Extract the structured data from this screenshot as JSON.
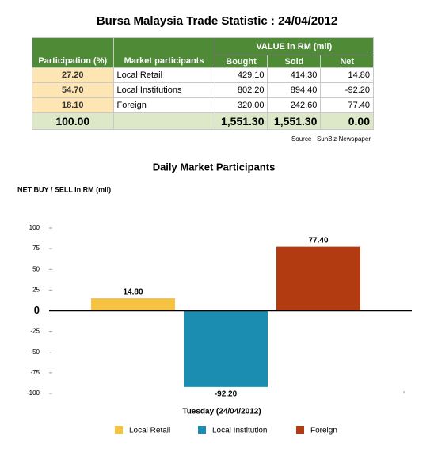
{
  "header": {
    "title": "Bursa Malaysia Trade Statistic : 24/04/2012"
  },
  "table": {
    "group_header": "VALUE in RM (mil)",
    "columns": [
      "Participation (%)",
      "Market participants",
      "Bought",
      "Sold",
      "Net"
    ],
    "rows": [
      [
        "27.20",
        "Local Retail",
        "429.10",
        "414.30",
        "14.80"
      ],
      [
        "54.70",
        "Local Institutions",
        "802.20",
        "894.40",
        "-92.20"
      ],
      [
        "18.10",
        "Foreign",
        "320.00",
        "242.60",
        "77.40"
      ]
    ],
    "total": [
      "100.00",
      "1,551.30",
      "1,551.30",
      "0.00"
    ]
  },
  "source": "Source : SunBiz Newspaper",
  "chart_data": {
    "type": "bar",
    "title": "Daily Market Participants",
    "y_label": "NET BUY / SELL in RM (mil)",
    "x_label": "Tuesday (24/04/2012)",
    "categories": [
      null
    ],
    "series": [
      {
        "name": "Local Retail",
        "color": "#f5c242",
        "values": [
          14.8
        ],
        "value_labels": [
          "14.80"
        ]
      },
      {
        "name": "Local Institution",
        "color": "#1a8db0",
        "values": [
          -92.2
        ],
        "value_labels": [
          "-92.20"
        ]
      },
      {
        "name": "Foreign",
        "color": "#b23b12",
        "values": [
          77.4
        ],
        "value_labels": [
          "77.40"
        ]
      }
    ],
    "ylim": [
      -100,
      100
    ],
    "yticks": [
      100,
      75,
      50,
      25,
      0,
      -25,
      -50,
      -75,
      -100
    ],
    "grid": false
  }
}
